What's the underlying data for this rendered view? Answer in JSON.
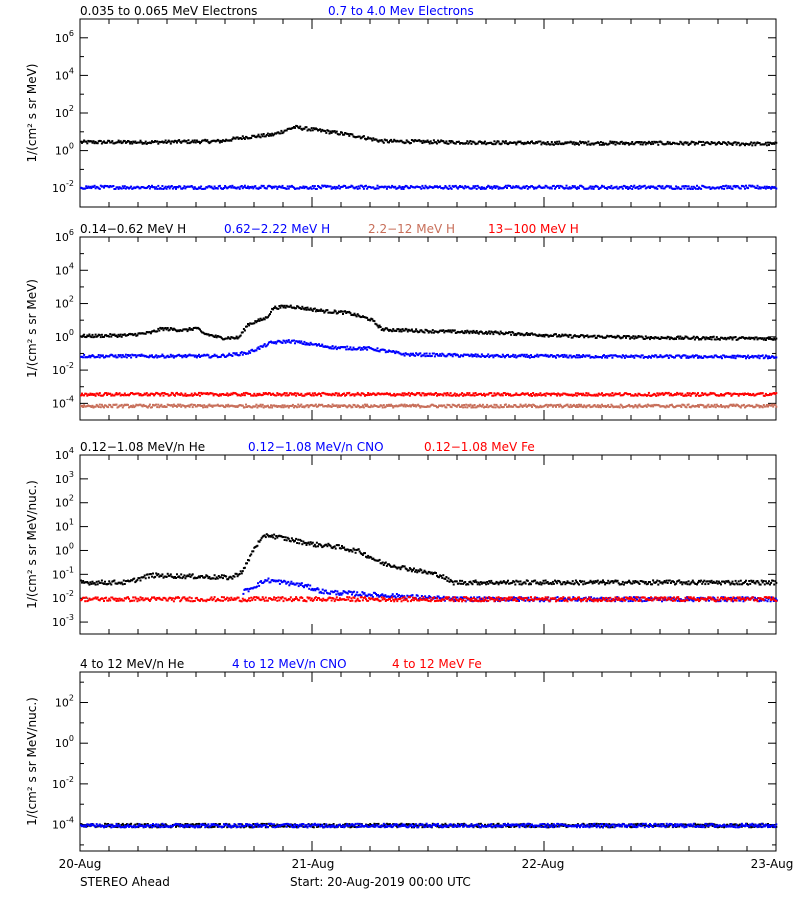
{
  "footer": {
    "left": "STEREO Ahead",
    "start": "Start: 20-Aug-2019 00:00 UTC"
  },
  "time_axis": {
    "ticks": [
      "20-Aug",
      "21-Aug",
      "22-Aug",
      "23-Aug"
    ],
    "range_days": [
      0,
      3
    ]
  },
  "chart_data": [
    {
      "type": "scatter",
      "ylog": true,
      "ylabel": "1/(cm² s sr MeV)",
      "ylim_exp": [
        -3,
        7
      ],
      "major_tick_exp": [
        -2,
        0,
        2,
        4,
        6
      ],
      "series": [
        {
          "name": "0.035 to 0.065 MeV Electrons",
          "color": "#000000",
          "points": [
            [
              0,
              0.5
            ],
            [
              0.3,
              0.5
            ],
            [
              0.6,
              0.55
            ],
            [
              0.7,
              0.75
            ],
            [
              0.83,
              0.9
            ],
            [
              0.92,
              1.3
            ],
            [
              1.1,
              1.0
            ],
            [
              1.2,
              0.8
            ],
            [
              1.3,
              0.55
            ],
            [
              1.6,
              0.5
            ],
            [
              2.0,
              0.45
            ],
            [
              2.5,
              0.45
            ],
            [
              3.0,
              0.4
            ]
          ]
        },
        {
          "name": "0.7 to 4.0 Mev Electrons",
          "color": "#0000ff",
          "points": [
            [
              0,
              -1.9
            ],
            [
              1.5,
              -1.9
            ],
            [
              3.0,
              -1.9
            ]
          ]
        }
      ]
    },
    {
      "type": "scatter",
      "ylog": true,
      "ylabel": "1/(cm² s sr MeV)",
      "ylim_exp": [
        -5,
        6
      ],
      "major_tick_exp": [
        -4,
        -2,
        0,
        2,
        4,
        6
      ],
      "series": [
        {
          "name": "0.14−0.62 MeV H",
          "color": "#000000",
          "points": [
            [
              0,
              0.1
            ],
            [
              0.2,
              0.15
            ],
            [
              0.3,
              0.3
            ],
            [
              0.35,
              0.55
            ],
            [
              0.45,
              0.45
            ],
            [
              0.5,
              0.6
            ],
            [
              0.52,
              0.3
            ],
            [
              0.6,
              0.0
            ],
            [
              0.68,
              0.0
            ],
            [
              0.72,
              0.8
            ],
            [
              0.8,
              1.2
            ],
            [
              0.83,
              1.8
            ],
            [
              0.9,
              1.9
            ],
            [
              1.05,
              1.6
            ],
            [
              1.15,
              1.5
            ],
            [
              1.25,
              1.1
            ],
            [
              1.3,
              0.5
            ],
            [
              1.5,
              0.4
            ],
            [
              1.8,
              0.3
            ],
            [
              2.1,
              0.1
            ],
            [
              2.5,
              0.0
            ],
            [
              3.0,
              -0.05
            ]
          ]
        },
        {
          "name": "0.62−2.22 MeV H",
          "color": "#0000ff",
          "points": [
            [
              0,
              -1.1
            ],
            [
              0.6,
              -1.1
            ],
            [
              0.72,
              -0.9
            ],
            [
              0.82,
              -0.3
            ],
            [
              0.9,
              -0.2
            ],
            [
              1.1,
              -0.6
            ],
            [
              1.25,
              -0.65
            ],
            [
              1.4,
              -1.0
            ],
            [
              1.8,
              -1.1
            ],
            [
              3.0,
              -1.15
            ]
          ]
        },
        {
          "name": "2.2−12 MeV H",
          "color": "#c86f5a",
          "points": [
            [
              0,
              -4.1
            ],
            [
              3.0,
              -4.1
            ]
          ]
        },
        {
          "name": "13−100 MeV H",
          "color": "#ff0000",
          "points": [
            [
              0,
              -3.4
            ],
            [
              3.0,
              -3.4
            ]
          ]
        }
      ]
    },
    {
      "type": "scatter",
      "ylog": true,
      "ylabel": "1/(cm² s sr MeV/nuc.)",
      "ylim_exp": [
        -3.5,
        4
      ],
      "major_tick_exp": [
        -3,
        -2,
        -1,
        0,
        1,
        2,
        3,
        4
      ],
      "series": [
        {
          "name": "0.12−1.08 MeV/n He",
          "color": "#000000",
          "points": [
            [
              0,
              -1.3
            ],
            [
              0.2,
              -1.3
            ],
            [
              0.3,
              -1.0
            ],
            [
              0.5,
              -1.05
            ],
            [
              0.65,
              -1.1
            ],
            [
              0.7,
              -0.8
            ],
            [
              0.75,
              0.2
            ],
            [
              0.8,
              0.7
            ],
            [
              0.9,
              0.5
            ],
            [
              1.0,
              0.3
            ],
            [
              1.1,
              0.2
            ],
            [
              1.2,
              0.0
            ],
            [
              1.3,
              -0.5
            ],
            [
              1.45,
              -0.8
            ],
            [
              1.55,
              -1.0
            ],
            [
              1.6,
              -1.3
            ],
            [
              3.0,
              -1.3
            ]
          ]
        },
        {
          "name": "0.12−1.08 MeV/n CNO",
          "color": "#0000ff",
          "points": [
            [
              0.7,
              -1.7
            ],
            [
              0.8,
              -1.2
            ],
            [
              0.95,
              -1.4
            ],
            [
              1.05,
              -1.7
            ],
            [
              1.6,
              -2.0
            ],
            [
              3.0,
              -2.0
            ]
          ]
        },
        {
          "name": "0.12−1.08 MeV Fe",
          "color": "#ff0000",
          "points": [
            [
              0,
              -2.0
            ],
            [
              3.0,
              -2.0
            ]
          ]
        }
      ]
    },
    {
      "type": "scatter",
      "ylog": true,
      "ylabel": "1/(cm² s sr MeV/nuc.)",
      "ylim_exp": [
        -5.3,
        3.5
      ],
      "major_tick_exp": [
        -4,
        -2,
        0,
        2
      ],
      "series": [
        {
          "name": "4 to 12 MeV/n He",
          "color": "#000000",
          "points": [
            [
              0,
              -4.0
            ],
            [
              3.0,
              -4.0
            ]
          ]
        },
        {
          "name": "4 to 12 MeV/n CNO",
          "color": "#0000ff",
          "points": [
            [
              0,
              -4.0
            ],
            [
              3.0,
              -4.0
            ]
          ]
        },
        {
          "name": "4 to 12 MeV Fe",
          "color": "#ff0000",
          "points": []
        }
      ]
    }
  ]
}
